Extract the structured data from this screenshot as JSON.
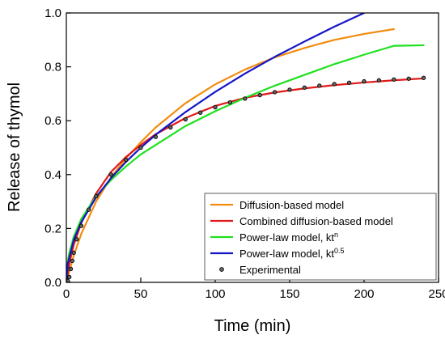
{
  "chart_data": {
    "type": "line",
    "xlabel": "Time (min)",
    "ylabel": "Release of thymol",
    "xlim": [
      0,
      250
    ],
    "ylim": [
      0.0,
      1.0
    ],
    "x_ticks": [
      0,
      50,
      100,
      150,
      200,
      250
    ],
    "x_tick_labels": [
      "0",
      "50",
      "100",
      "150",
      "200",
      "250"
    ],
    "y_ticks": [
      0.0,
      0.2,
      0.4,
      0.6,
      0.8,
      1.0
    ],
    "y_tick_labels": [
      "0.0",
      "0.2",
      "0.4",
      "0.6",
      "0.8",
      "1.0"
    ],
    "grid": false,
    "legend_position": "bottom-right",
    "series": [
      {
        "name": "Diffusion-based model",
        "legend_html": "Diffusion-based model",
        "kind": "line",
        "color": "#f28c0f",
        "x": [
          0,
          5,
          10,
          20,
          30,
          40,
          50,
          60,
          80,
          100,
          120,
          140,
          160,
          180,
          200,
          220
        ],
        "y": [
          0.0,
          0.1,
          0.18,
          0.3,
          0.39,
          0.46,
          0.52,
          0.575,
          0.665,
          0.735,
          0.79,
          0.835,
          0.87,
          0.9,
          0.922,
          0.94
        ]
      },
      {
        "name": "Combined diffusion-based model",
        "legend_html": "Combined diffusion-based model",
        "kind": "line",
        "color": "#e01919",
        "x": [
          0,
          2,
          5,
          10,
          20,
          30,
          40,
          50,
          60,
          80,
          100,
          120,
          140,
          160,
          180,
          200,
          220,
          240
        ],
        "y": [
          0.0,
          0.07,
          0.14,
          0.22,
          0.33,
          0.41,
          0.465,
          0.51,
          0.55,
          0.61,
          0.655,
          0.685,
          0.705,
          0.72,
          0.732,
          0.742,
          0.75,
          0.757
        ]
      },
      {
        "name": "Power-law model, kt^n",
        "legend_html": "Power-law model, kt<tspan baseline-shift=\"super\" font-size=\"9\">n</tspan>",
        "kind": "line",
        "color": "#1fe01f",
        "x": [
          0,
          1,
          2,
          5,
          10,
          20,
          30,
          40,
          50,
          60,
          80,
          100,
          120,
          140,
          160,
          180,
          200,
          220,
          240
        ],
        "y": [
          0.0,
          0.08,
          0.11,
          0.17,
          0.235,
          0.32,
          0.38,
          0.43,
          0.475,
          0.51,
          0.58,
          0.635,
          0.685,
          0.73,
          0.77,
          0.81,
          0.845,
          0.878,
          0.88
        ]
      },
      {
        "name": "Power-law model, kt^0.5",
        "legend_html": "Power-law model, kt<tspan baseline-shift=\"super\" font-size=\"9\">0.5</tspan>",
        "kind": "line",
        "color": "#1515c8",
        "x": [
          0,
          1,
          5,
          10,
          20,
          30,
          40,
          50,
          60,
          80,
          100,
          120,
          140,
          160,
          180,
          200,
          205
        ],
        "y": [
          0.0,
          0.07,
          0.158,
          0.223,
          0.316,
          0.387,
          0.447,
          0.5,
          0.548,
          0.632,
          0.707,
          0.775,
          0.837,
          0.894,
          0.949,
          1.0,
          1.012
        ]
      },
      {
        "name": "Experimental",
        "legend_html": "Experimental",
        "kind": "scatter",
        "color": "#000000",
        "x": [
          1,
          2,
          3,
          4,
          5,
          7,
          10,
          15,
          20,
          30,
          40,
          50,
          60,
          70,
          80,
          90,
          100,
          110,
          120,
          130,
          140,
          150,
          160,
          170,
          180,
          190,
          200,
          210,
          220,
          230,
          240
        ],
        "y": [
          0.005,
          0.02,
          0.05,
          0.08,
          0.11,
          0.16,
          0.21,
          0.27,
          0.32,
          0.4,
          0.455,
          0.5,
          0.54,
          0.575,
          0.605,
          0.63,
          0.65,
          0.668,
          0.682,
          0.695,
          0.706,
          0.715,
          0.723,
          0.73,
          0.736,
          0.741,
          0.746,
          0.75,
          0.753,
          0.756,
          0.759
        ]
      }
    ]
  }
}
